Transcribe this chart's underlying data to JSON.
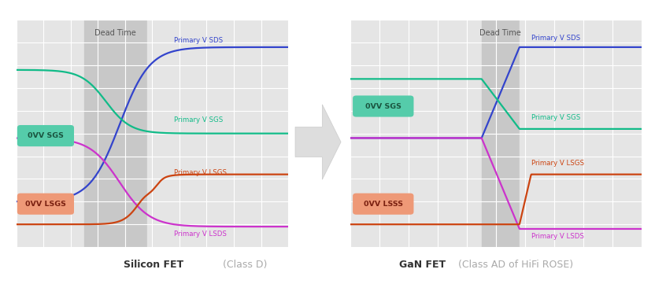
{
  "fig_width": 8.32,
  "fig_height": 3.61,
  "dpi": 100,
  "bg_color": "#ffffff",
  "panel_bg": "#e5e5e5",
  "dead_time_bg": "#c8c8c8",
  "grid_color": "#ffffff",
  "grid_lw": 0.8,
  "colors": {
    "blue": "#3344cc",
    "green": "#11bb88",
    "red": "#cc4411",
    "magenta": "#cc33cc"
  },
  "labels": {
    "sds": "Primary V SDS",
    "sgs": "Primary V SGS",
    "lsgs": "Primary V LSGS",
    "lsds": "Primary V LSDS"
  },
  "badge_sgs_color": "#55ccaa",
  "badge_lsgs_color": "#ee9977",
  "title_left_bold": "Silicon FET",
  "title_left_light": " (Class D)",
  "title_right_bold": "GaN FET",
  "title_right_light": " (Class AD of HiFi ROSE)",
  "dead_time_label": "Dead Time",
  "arrow_color": "#cccccc"
}
